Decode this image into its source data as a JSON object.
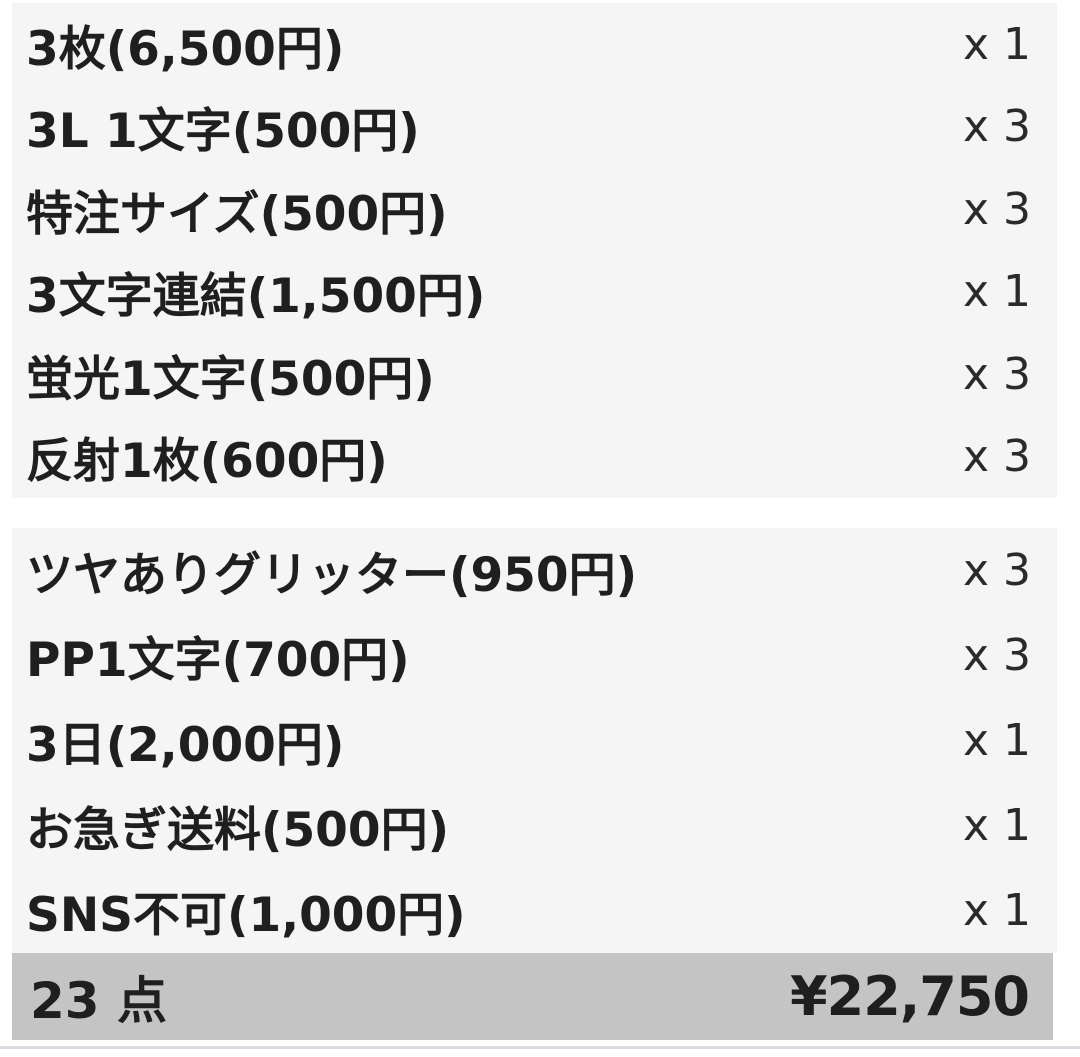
{
  "colors": {
    "page_bg": "#ffffff",
    "panel_bg": "#f5f5f6",
    "bar_bg": "#c4c4c4",
    "text": "#1f1f1f",
    "divider": "#d8dce0"
  },
  "sections": [
    {
      "items": [
        {
          "label": "3枚(6,500円)",
          "quantity": "x 1"
        },
        {
          "label": "3L 1文字(500円)",
          "quantity": "x 3"
        },
        {
          "label": "特注サイズ(500円)",
          "quantity": "x 3"
        },
        {
          "label": "3文字連結(1,500円)",
          "quantity": "x 1"
        },
        {
          "label": "蛍光1文字(500円)",
          "quantity": "x 3"
        },
        {
          "label": "反射1枚(600円)",
          "quantity": "x 3"
        }
      ]
    },
    {
      "items": [
        {
          "label": "ツヤありグリッター(950円)",
          "quantity": "x 3"
        },
        {
          "label": "PP1文字(700円)",
          "quantity": "x 3"
        },
        {
          "label": "3日(2,000円)",
          "quantity": "x 1"
        },
        {
          "label": "お急ぎ送料(500円)",
          "quantity": "x 1"
        },
        {
          "label": "SNS不可(1,000円)",
          "quantity": "x 1"
        }
      ]
    }
  ],
  "total": {
    "count_label": "23 点",
    "amount": "¥22,750"
  }
}
